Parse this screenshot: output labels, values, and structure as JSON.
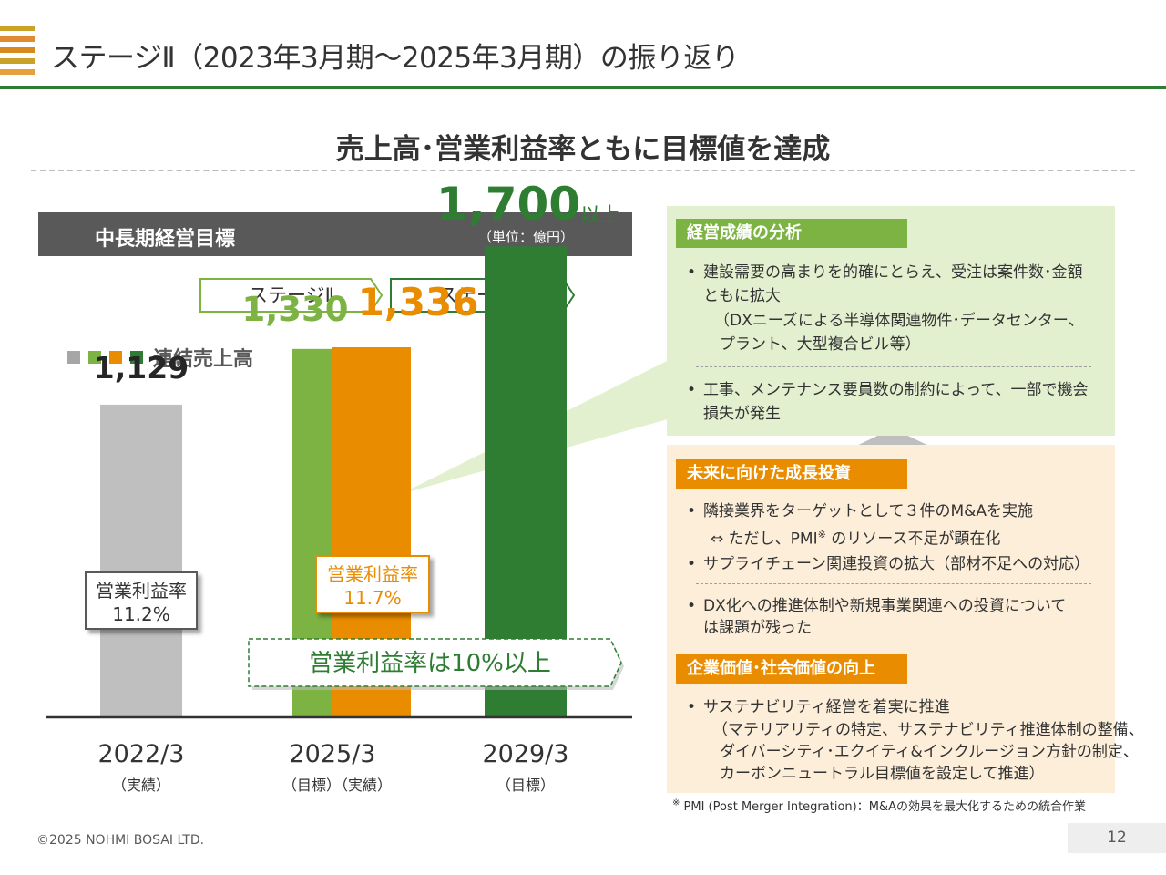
{
  "header": {
    "title": "ステージⅡ（2023年3月期～2025年3月期）の振り返り",
    "headline": "売上高･営業利益率ともに目標値を達成",
    "logo_colors": [
      "#c9a227",
      "#e08b2f",
      "#d98a1f",
      "#c9a227",
      "#e6a03d"
    ]
  },
  "panel": {
    "title": "中長期経営目標",
    "unit": "（単位：億円）",
    "stages": [
      "ステージⅡ",
      "ステージⅢ"
    ],
    "legend_label": "連結売上高",
    "legend_colors": [
      "#a6a6a6",
      "#7cb342",
      "#ea8c00",
      "#2e7d32"
    ]
  },
  "chart_data": {
    "type": "bar",
    "categories": [
      "2022/3",
      "2025/3",
      "2025/3",
      "2029/3"
    ],
    "category_notes": [
      "（実績）",
      "（目標）",
      "（実績）",
      "（目標）"
    ],
    "series": [
      {
        "values": [
          1129,
          1330,
          1336,
          1700
        ]
      }
    ],
    "value_labels": [
      "1,129",
      "1,330",
      "1,336",
      "1,700"
    ],
    "value_suffix_last": "以上",
    "bar_colors": [
      "#bfbfbf",
      "#7cb342",
      "#ea8c00",
      "#2e7d32"
    ],
    "label_colors": [
      "#262626",
      "#7cb342",
      "#ea8c00",
      "#2e7d32"
    ],
    "ylim": [
      0,
      1800
    ],
    "grid": false,
    "operating_margin": {
      "label": "営業利益率",
      "2022/3": "11.2%",
      "2025/3": "11.7%",
      "target": "営業利益率は10%以上"
    },
    "year_groups": [
      {
        "year": "2022/3",
        "note": "（実績）"
      },
      {
        "year": "2025/3",
        "note": "（目標）（実績）"
      },
      {
        "year": "2029/3",
        "note": "（目標）"
      }
    ]
  },
  "analysis": {
    "title": "経営成績の分析",
    "bullets": [
      {
        "lines": [
          "建設需要の高まりを的確にとらえ、受注は案件数･金額",
          "ともに拡大",
          "（DXニーズによる半導体関連物件･データセンター、",
          "プラント、大型複合ビル等）"
        ]
      },
      {
        "lines": [
          "工事、メンテナンス要員数の制約によって、一部で機会",
          "損失が発生"
        ]
      }
    ]
  },
  "investment": {
    "title": "未来に向けた成長投資",
    "bullets": [
      {
        "lines": [
          "隣接業界をターゲットとして３件のM&Aを実施",
          "⇔ ただし、PMI",
          "※",
          " のリソース不足が顕在化"
        ]
      },
      {
        "lines": [
          "サプライチェーン関連投資の拡大（部材不足への対応）"
        ]
      },
      {
        "lines": [
          "DX化への推進体制や新規事業関連への投資について",
          "は課題が残った"
        ]
      }
    ]
  },
  "value": {
    "title": "企業価値･社会価値の向上",
    "bullets": [
      {
        "lines": [
          "サステナビリティ経営を着実に推進",
          "（マテリアリティの特定、サステナビリティ推進体制の整備、",
          "ダイバーシティ･エクイティ&インクルージョン方針の制定、",
          "カーボンニュートラル目標値を設定して推進）"
        ]
      }
    ]
  },
  "footer": {
    "footnote_mark": "※",
    "footnote": "PMI (Post Merger Integration)：M&Aの効果を最大化するための統合作業",
    "copyright": "©2025 NOHMI BOSAI LTD.",
    "page": "12"
  }
}
